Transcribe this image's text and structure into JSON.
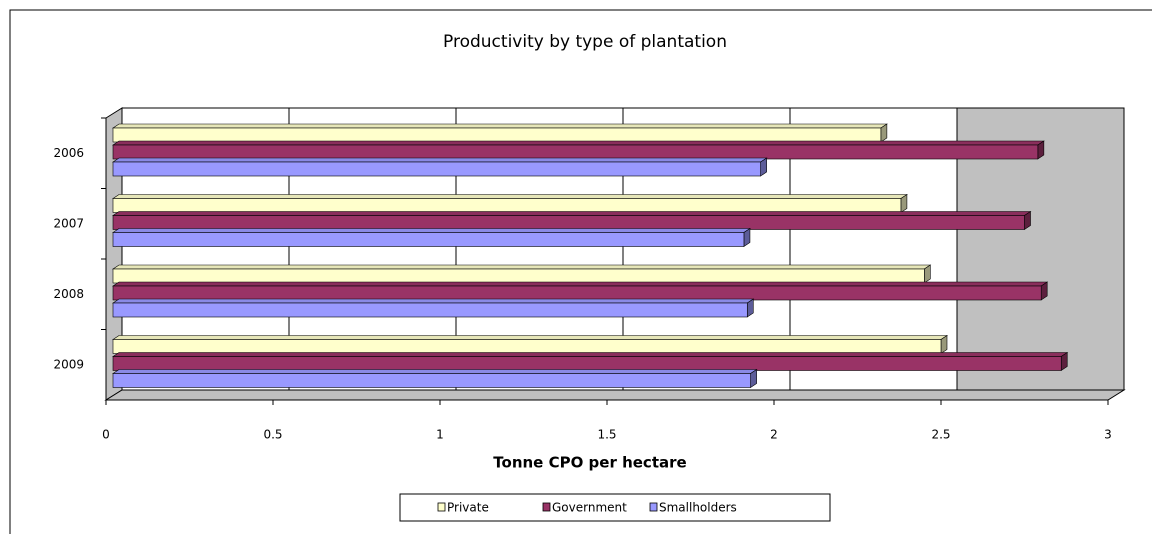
{
  "chart_data": {
    "type": "bar",
    "orientation": "horizontal",
    "three_d": true,
    "title": "Productivity by type of plantation",
    "x_label": "Tonne CPO per hectare",
    "categories": [
      "2006",
      "2007",
      "2008",
      "2009"
    ],
    "series": [
      {
        "name": "Private",
        "color": "#FFFFCC",
        "values": [
          2.32,
          2.38,
          2.45,
          2.5
        ]
      },
      {
        "name": "Government",
        "color": "#993366",
        "values": [
          2.79,
          2.75,
          2.8,
          2.86
        ]
      },
      {
        "name": "Smallholders",
        "color": "#9999FF",
        "values": [
          1.96,
          1.91,
          1.92,
          1.93
        ]
      }
    ],
    "xlim": [
      0,
      3
    ],
    "xticks": [
      0,
      0.5,
      1,
      1.5,
      2,
      2.5,
      3
    ],
    "grid": true,
    "legend": "bottom"
  }
}
